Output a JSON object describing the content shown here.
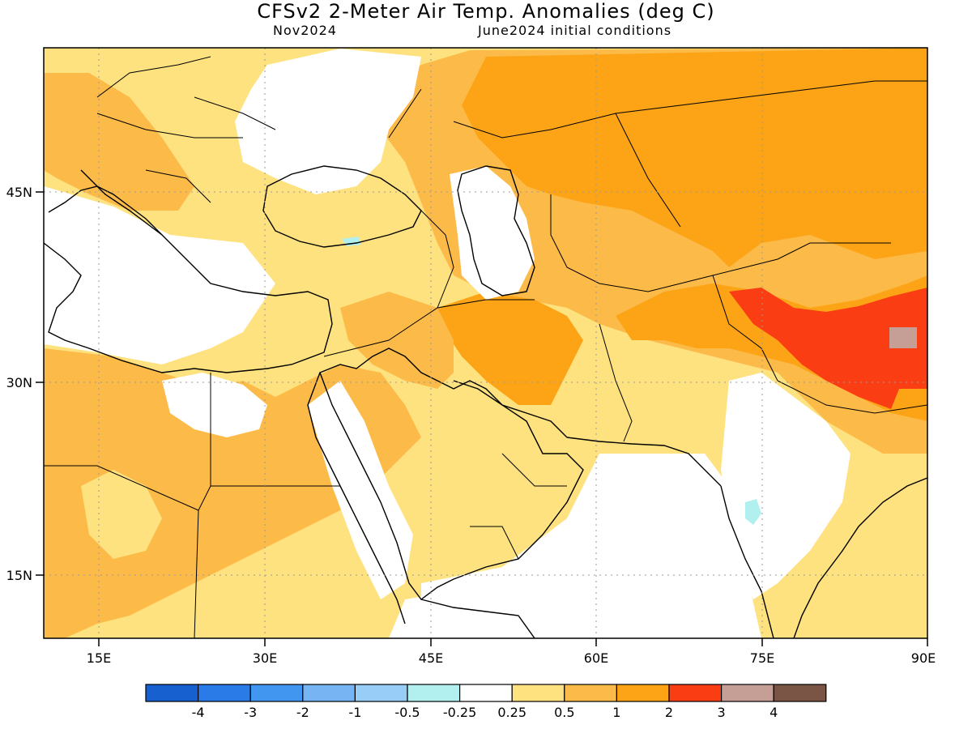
{
  "title": "CFSv2 2-Meter Air Temp. Anomalies (deg C)",
  "subtitle_left": "Nov2024",
  "subtitle_right": "June2024 initial conditions",
  "axes": {
    "x_ticks": [
      "15E",
      "30E",
      "45E",
      "60E",
      "75E",
      "90E"
    ],
    "y_ticks": [
      "45N",
      "30N",
      "15N"
    ],
    "x_range": [
      10,
      90
    ],
    "y_range": [
      10,
      56
    ]
  },
  "colorbar": {
    "colors": [
      "#1660cf",
      "#2a7ae8",
      "#4196f0",
      "#76b4f4",
      "#98cdf7",
      "#b2f0f0",
      "#ffffff",
      "#fde27f",
      "#fcbb49",
      "#fca416",
      "#fb3d14",
      "#c59e95",
      "#7a5444"
    ],
    "labels": [
      "-4",
      "-3",
      "-2",
      "-1",
      "-0.5",
      "-0.25",
      "0.25",
      "0.5",
      "1",
      "2",
      "3",
      "4"
    ]
  },
  "map": {
    "ocean_color": "#ffffff",
    "grid": true
  }
}
